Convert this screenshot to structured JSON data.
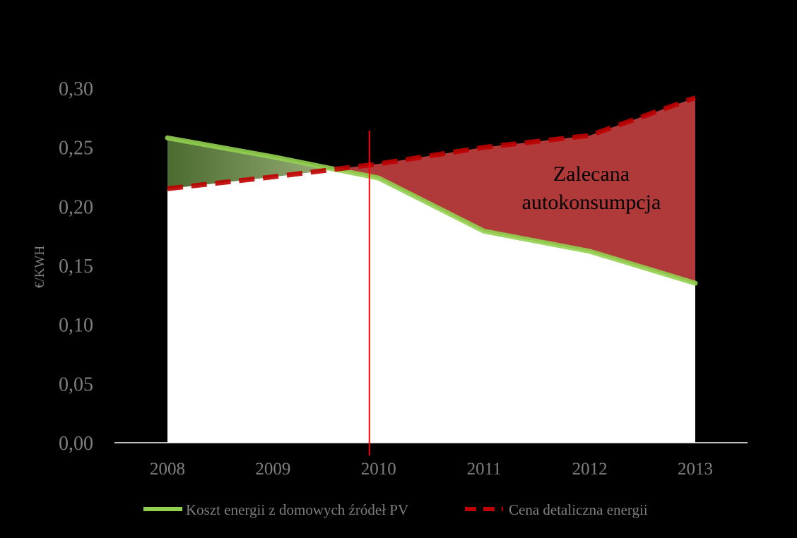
{
  "chart_data": {
    "type": "area",
    "title": "",
    "ylabel": "€/KWH",
    "xlabel": "",
    "categories": [
      "2008",
      "2009",
      "2010",
      "2011",
      "2012",
      "2013"
    ],
    "ylim": [
      0,
      0.3
    ],
    "yticks": [
      0.0,
      0.05,
      0.1,
      0.15,
      0.2,
      0.25,
      0.3
    ],
    "ytick_labels": [
      "0,00",
      "0,05",
      "0,10",
      "0,15",
      "0,20",
      "0,25",
      "0,30"
    ],
    "grid": false,
    "legend_position": "bottom",
    "series": [
      {
        "name": "Koszt energii z domowych źródeł PV",
        "values": [
          0.258,
          0.242,
          0.224,
          0.179,
          0.162,
          0.135
        ],
        "color": "#92d050",
        "style": "solid"
      },
      {
        "name": "Cena detaliczna energii",
        "values": [
          0.215,
          0.225,
          0.236,
          0.25,
          0.26,
          0.292
        ],
        "color": "#c00000",
        "style": "dashed"
      }
    ],
    "marker_line": {
      "x": "2010",
      "color": "#ff0000"
    },
    "annotation": [
      "Zalecana",
      "autokonsumpcja"
    ],
    "colors": {
      "base_fill": "#ffffff",
      "pv_advantage_fill": "#4f6228",
      "self_consumption_fill": "#b03a3a",
      "axis_text": "#7f7f7f"
    }
  }
}
